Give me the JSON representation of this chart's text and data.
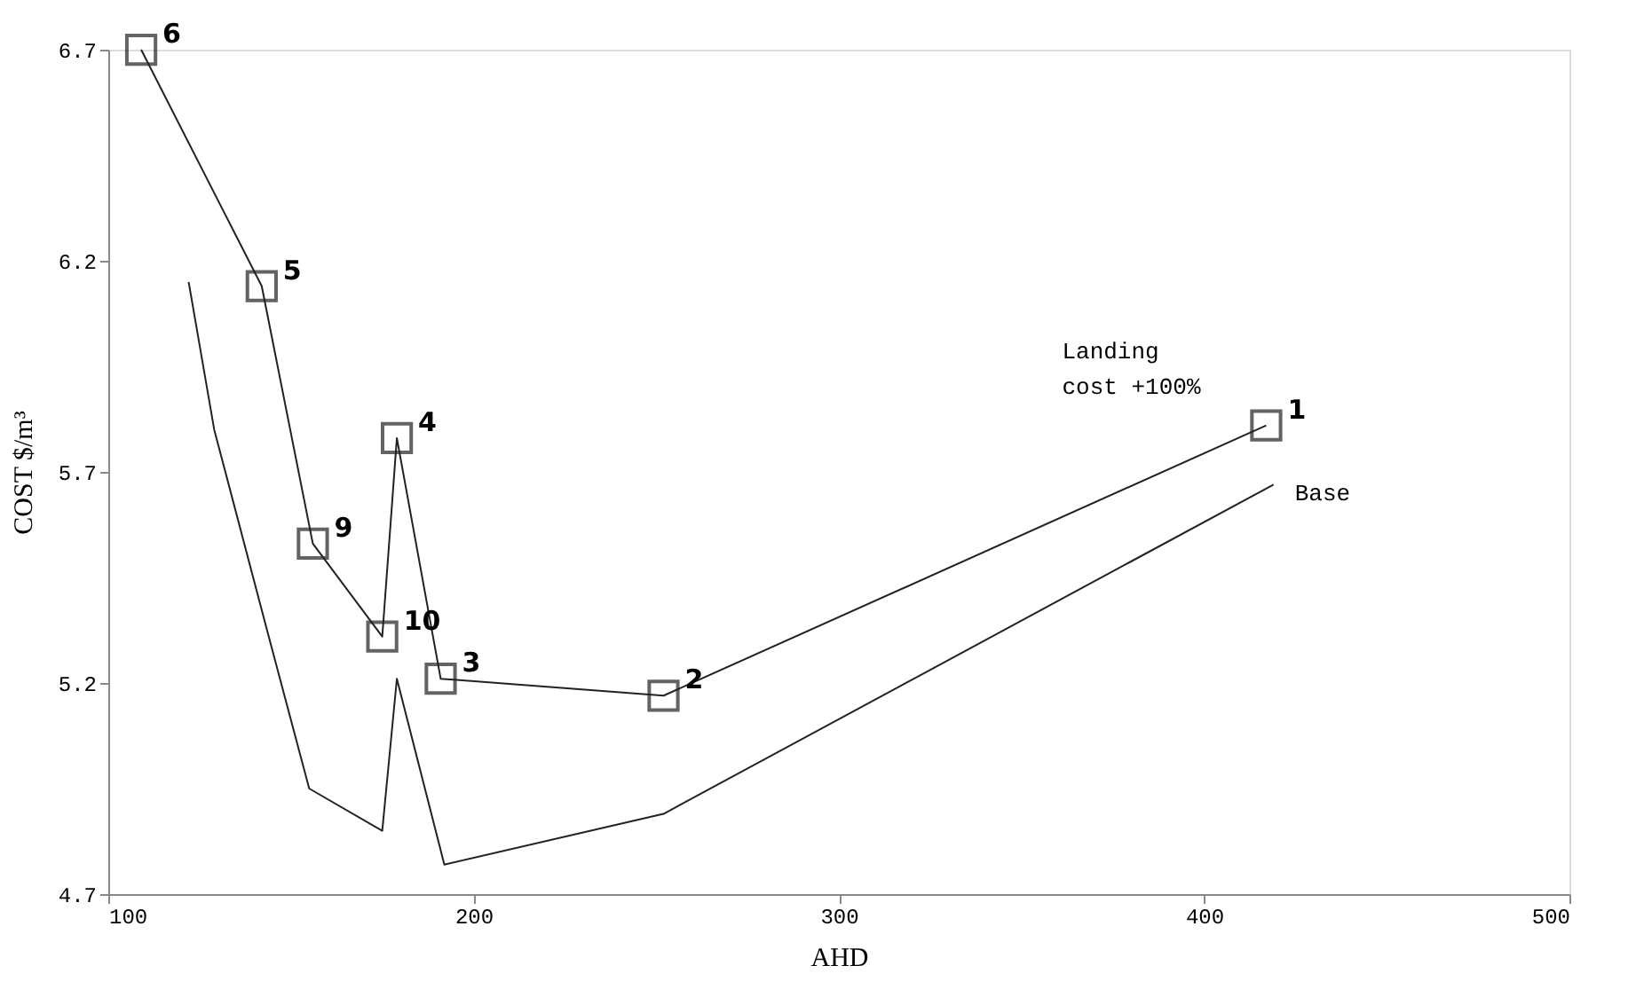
{
  "chart_data": {
    "type": "line",
    "xlabel": "AHD",
    "ylabel": "COST $/m³",
    "xlim": [
      100,
      500
    ],
    "xticks": [
      100,
      200,
      300,
      400,
      500
    ],
    "ylim": [
      4.7,
      6.7
    ],
    "yticks": [
      4.7,
      5.2,
      5.7,
      6.2,
      6.7
    ],
    "series": [
      {
        "name": "Landing cost +100%",
        "color": "#222222",
        "marker": "square",
        "x": [
          109,
          142,
          156,
          175,
          179,
          191,
          252,
          417
        ],
        "values": [
          6.7,
          6.14,
          5.53,
          5.31,
          5.78,
          5.21,
          5.17,
          5.81
        ]
      },
      {
        "name": "Base",
        "color": "#222222",
        "marker": "none",
        "x": [
          122,
          129,
          143,
          155,
          175,
          179,
          192,
          252,
          419
        ],
        "values": [
          6.15,
          5.8,
          5.34,
          4.95,
          4.85,
          5.21,
          4.77,
          4.89,
          5.67
        ]
      }
    ],
    "annotations": [
      {
        "text": "6",
        "x": 109,
        "y": 6.7
      },
      {
        "text": "5",
        "x": 142,
        "y": 6.14
      },
      {
        "text": "9",
        "x": 156,
        "y": 5.53
      },
      {
        "text": "10",
        "x": 175,
        "y": 5.31
      },
      {
        "text": "4",
        "x": 179,
        "y": 5.78
      },
      {
        "text": "3",
        "x": 191,
        "y": 5.21
      },
      {
        "text": "2",
        "x": 252,
        "y": 5.17
      },
      {
        "text": "1",
        "x": 417,
        "y": 5.81
      }
    ]
  }
}
